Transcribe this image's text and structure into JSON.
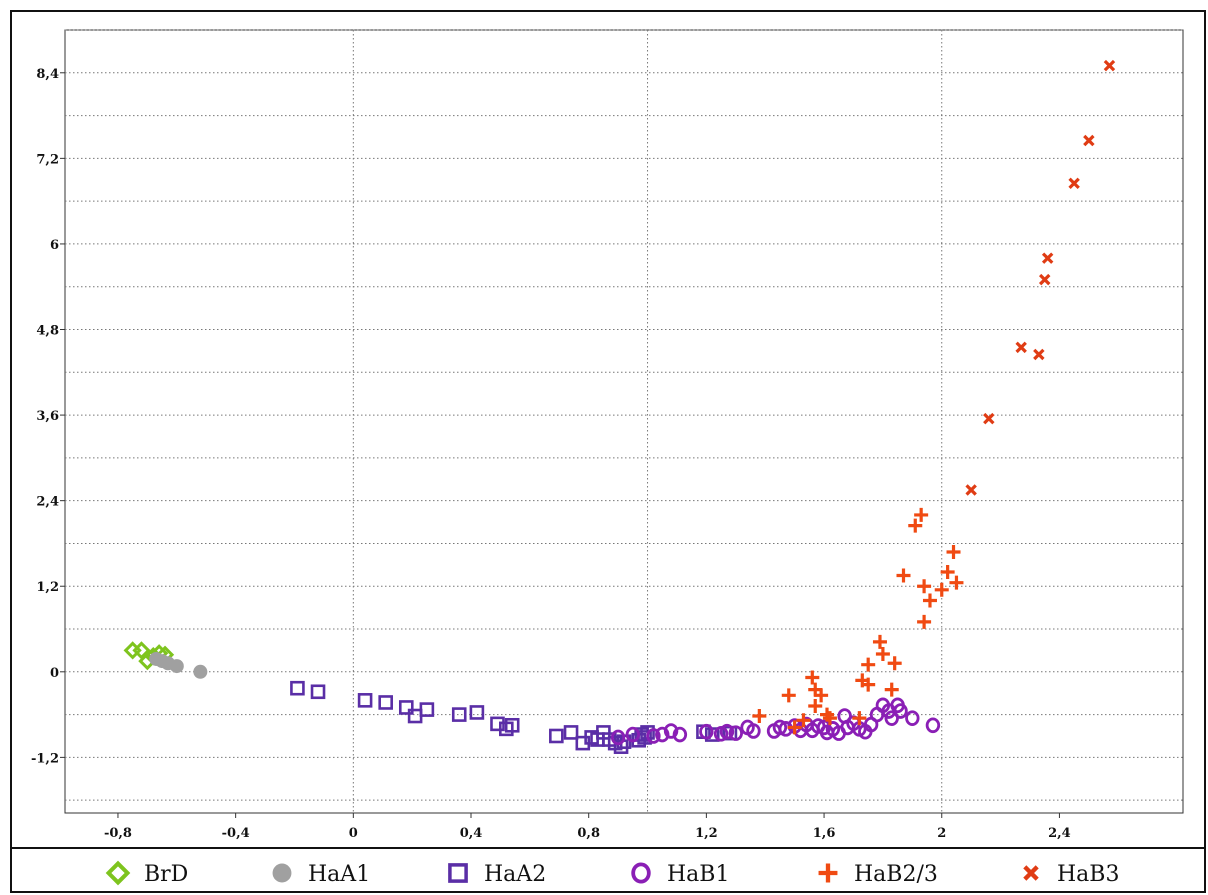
{
  "chart_data": {
    "type": "scatter",
    "title": "",
    "xlabel": "",
    "ylabel": "",
    "xlim": [
      -0.98,
      2.82
    ],
    "ylim": [
      -1.98,
      9.0
    ],
    "x_ticks": [
      -0.8,
      -0.4,
      0,
      0.4,
      0.8,
      1.2,
      1.6,
      2,
      2.4
    ],
    "x_tick_labels": [
      "-0,8",
      "-0,4",
      "0",
      "0,4",
      "0,8",
      "1,2",
      "1,6",
      "2",
      "2,4"
    ],
    "y_ticks": [
      -1.2,
      0,
      1.2,
      2.4,
      3.6,
      4.8,
      6,
      7.2,
      8.4
    ],
    "y_tick_labels": [
      "-1,2",
      "0",
      "1,2",
      "2,4",
      "3,6",
      "4,8",
      "6",
      "7,2",
      "8,4"
    ],
    "grid": "dotted, horizontal every 0.6, vertical every 0.4 (major) plus x = 1",
    "legend_position": "bottom",
    "series": [
      {
        "name": "BrD",
        "marker": "diamond-open",
        "color": "#7ec41e",
        "points": [
          [
            -0.75,
            0.3
          ],
          [
            -0.72,
            0.3
          ],
          [
            -0.7,
            0.15
          ],
          [
            -0.68,
            0.22
          ],
          [
            -0.66,
            0.26
          ],
          [
            -0.64,
            0.24
          ]
        ]
      },
      {
        "name": "HaA1",
        "marker": "circle-filled",
        "color": "#a0a0a0",
        "points": [
          [
            -0.67,
            0.18
          ],
          [
            -0.65,
            0.15
          ],
          [
            -0.63,
            0.12
          ],
          [
            -0.6,
            0.08
          ],
          [
            -0.52,
            0.0
          ]
        ]
      },
      {
        "name": "HaA2",
        "marker": "square-open",
        "color": "#5a2ea6",
        "points": [
          [
            -0.19,
            -0.23
          ],
          [
            -0.12,
            -0.28
          ],
          [
            0.04,
            -0.4
          ],
          [
            0.11,
            -0.43
          ],
          [
            0.18,
            -0.5
          ],
          [
            0.21,
            -0.62
          ],
          [
            0.25,
            -0.53
          ],
          [
            0.36,
            -0.6
          ],
          [
            0.42,
            -0.57
          ],
          [
            0.49,
            -0.73
          ],
          [
            0.52,
            -0.8
          ],
          [
            0.54,
            -0.75
          ],
          [
            0.69,
            -0.9
          ],
          [
            0.74,
            -0.85
          ],
          [
            0.78,
            -1.0
          ],
          [
            0.81,
            -0.92
          ],
          [
            0.83,
            -0.95
          ],
          [
            0.85,
            -0.85
          ],
          [
            0.87,
            -0.95
          ],
          [
            0.89,
            -1.0
          ],
          [
            0.91,
            -1.05
          ],
          [
            0.92,
            -0.98
          ],
          [
            0.97,
            -0.96
          ],
          [
            0.98,
            -0.88
          ],
          [
            0.99,
            -0.92
          ],
          [
            1.0,
            -0.85
          ],
          [
            1.19,
            -0.84
          ],
          [
            1.22,
            -0.88
          ],
          [
            1.28,
            -0.86
          ]
        ]
      },
      {
        "name": "HaB1",
        "marker": "circle-open",
        "color": "#8a1fb5",
        "points": [
          [
            0.9,
            -0.92
          ],
          [
            0.95,
            -0.88
          ],
          [
            1.02,
            -0.9
          ],
          [
            1.05,
            -0.88
          ],
          [
            1.08,
            -0.83
          ],
          [
            1.11,
            -0.88
          ],
          [
            1.2,
            -0.84
          ],
          [
            1.25,
            -0.87
          ],
          [
            1.27,
            -0.84
          ],
          [
            1.3,
            -0.86
          ],
          [
            1.34,
            -0.78
          ],
          [
            1.36,
            -0.83
          ],
          [
            1.43,
            -0.83
          ],
          [
            1.45,
            -0.78
          ],
          [
            1.47,
            -0.8
          ],
          [
            1.5,
            -0.76
          ],
          [
            1.52,
            -0.82
          ],
          [
            1.54,
            -0.74
          ],
          [
            1.56,
            -0.82
          ],
          [
            1.58,
            -0.76
          ],
          [
            1.6,
            -0.78
          ],
          [
            1.61,
            -0.85
          ],
          [
            1.63,
            -0.8
          ],
          [
            1.65,
            -0.86
          ],
          [
            1.67,
            -0.62
          ],
          [
            1.68,
            -0.78
          ],
          [
            1.7,
            -0.72
          ],
          [
            1.72,
            -0.8
          ],
          [
            1.74,
            -0.84
          ],
          [
            1.76,
            -0.74
          ],
          [
            1.78,
            -0.6
          ],
          [
            1.8,
            -0.47
          ],
          [
            1.82,
            -0.55
          ],
          [
            1.83,
            -0.65
          ],
          [
            1.85,
            -0.47
          ],
          [
            1.86,
            -0.55
          ],
          [
            1.9,
            -0.65
          ],
          [
            1.97,
            -0.75
          ]
        ]
      },
      {
        "name": "HaB2/3",
        "marker": "plus",
        "color": "#f04a12",
        "points": [
          [
            1.38,
            -0.62
          ],
          [
            1.48,
            -0.33
          ],
          [
            1.5,
            -0.78
          ],
          [
            1.53,
            -0.68
          ],
          [
            1.56,
            -0.08
          ],
          [
            1.57,
            -0.48
          ],
          [
            1.57,
            -0.25
          ],
          [
            1.59,
            -0.33
          ],
          [
            1.61,
            -0.6
          ],
          [
            1.62,
            -0.65
          ],
          [
            1.72,
            -0.65
          ],
          [
            1.73,
            -0.12
          ],
          [
            1.75,
            0.1
          ],
          [
            1.75,
            -0.18
          ],
          [
            1.79,
            0.42
          ],
          [
            1.8,
            0.25
          ],
          [
            1.83,
            -0.25
          ],
          [
            1.84,
            0.12
          ],
          [
            1.87,
            1.35
          ],
          [
            1.91,
            2.05
          ],
          [
            1.93,
            2.2
          ],
          [
            1.94,
            0.7
          ],
          [
            1.94,
            1.2
          ],
          [
            1.96,
            1.0
          ],
          [
            2.0,
            1.15
          ],
          [
            2.02,
            1.4
          ],
          [
            2.04,
            1.68
          ],
          [
            2.05,
            1.25
          ]
        ]
      },
      {
        "name": "HaB3",
        "marker": "x",
        "color": "#e03c14",
        "points": [
          [
            2.1,
            2.55
          ],
          [
            2.16,
            3.55
          ],
          [
            2.27,
            4.55
          ],
          [
            2.33,
            4.45
          ],
          [
            2.35,
            5.5
          ],
          [
            2.36,
            5.8
          ],
          [
            2.45,
            6.85
          ],
          [
            2.5,
            7.45
          ],
          [
            2.57,
            8.5
          ]
        ]
      }
    ]
  }
}
